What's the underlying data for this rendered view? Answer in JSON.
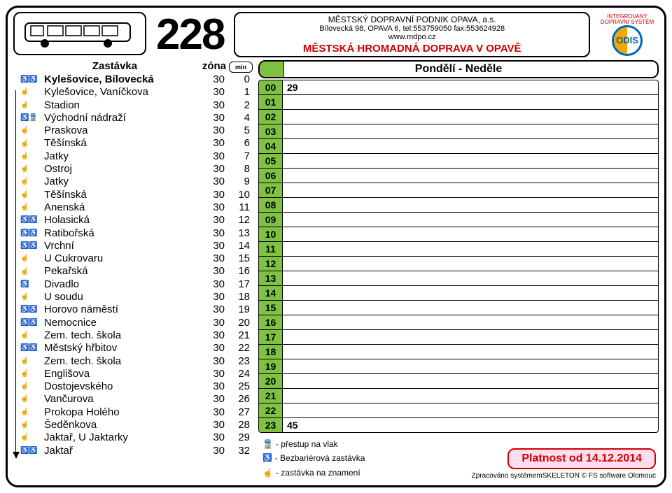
{
  "line_number": "228",
  "header": {
    "company": "MĚSTSKÝ DOPRAVNÍ PODNIK OPAVA, a.s.",
    "address": "Bílovecká 98, OPAVA 6, tel:553759050 fax:553624928",
    "web": "www.mdpo.cz",
    "title": "MĚSTSKÁ HROMADNÁ DOPRAVA V OPAVĚ"
  },
  "logo": {
    "top_text": "INTEGROVANÝ DOPRAVNÍ SYSTÉM",
    "text": "ODIS"
  },
  "stops_header": {
    "stop": "Zastávka",
    "zone": "zóna",
    "min": "min"
  },
  "stops": [
    {
      "icons": "♿♿",
      "name": "Kylešovice, Bílovecká",
      "zone": "30",
      "min": "0",
      "bold": true
    },
    {
      "icons": "☝",
      "name": "Kylešovice, Vaníčkova",
      "zone": "30",
      "min": "1"
    },
    {
      "icons": "☝",
      "name": "Stadion",
      "zone": "30",
      "min": "2"
    },
    {
      "icons": "♿🚆",
      "name": "Východní nádraží",
      "zone": "30",
      "min": "4"
    },
    {
      "icons": "☝",
      "name": "Praskova",
      "zone": "30",
      "min": "5"
    },
    {
      "icons": "☝",
      "name": "Těšínská",
      "zone": "30",
      "min": "6"
    },
    {
      "icons": "☝",
      "name": "Jatky",
      "zone": "30",
      "min": "7"
    },
    {
      "icons": "☝",
      "name": "Ostroj",
      "zone": "30",
      "min": "8"
    },
    {
      "icons": "☝",
      "name": "Jatky",
      "zone": "30",
      "min": "9"
    },
    {
      "icons": "☝",
      "name": "Těšínská",
      "zone": "30",
      "min": "10"
    },
    {
      "icons": "☝",
      "name": "Anenská",
      "zone": "30",
      "min": "11"
    },
    {
      "icons": "♿♿",
      "name": "Holasická",
      "zone": "30",
      "min": "12"
    },
    {
      "icons": "♿♿",
      "name": "Ratibořská",
      "zone": "30",
      "min": "13"
    },
    {
      "icons": "♿♿",
      "name": "Vrchní",
      "zone": "30",
      "min": "14"
    },
    {
      "icons": "☝",
      "name": "U Cukrovaru",
      "zone": "30",
      "min": "15"
    },
    {
      "icons": "☝",
      "name": "Pekařská",
      "zone": "30",
      "min": "16"
    },
    {
      "icons": "♿",
      "name": "Divadlo",
      "zone": "30",
      "min": "17"
    },
    {
      "icons": "☝",
      "name": "U soudu",
      "zone": "30",
      "min": "18"
    },
    {
      "icons": "♿♿",
      "name": "Horovo náměstí",
      "zone": "30",
      "min": "19"
    },
    {
      "icons": "♿♿",
      "name": "Nemocnice",
      "zone": "30",
      "min": "20"
    },
    {
      "icons": "☝",
      "name": "Zem. tech. škola",
      "zone": "30",
      "min": "21"
    },
    {
      "icons": "♿♿",
      "name": "Městský hřbitov",
      "zone": "30",
      "min": "22"
    },
    {
      "icons": "☝",
      "name": "Zem. tech. škola",
      "zone": "30",
      "min": "23"
    },
    {
      "icons": "☝",
      "name": "Englišova",
      "zone": "30",
      "min": "24"
    },
    {
      "icons": "☝",
      "name": "Dostojevského",
      "zone": "30",
      "min": "25"
    },
    {
      "icons": "☝",
      "name": "Vančurova",
      "zone": "30",
      "min": "26"
    },
    {
      "icons": "☝",
      "name": "Prokopa Holého",
      "zone": "30",
      "min": "27"
    },
    {
      "icons": "☝",
      "name": "Šeděnkova",
      "zone": "30",
      "min": "28"
    },
    {
      "icons": "☝",
      "name": "Jaktař, U Jaktarky",
      "zone": "30",
      "min": "29"
    },
    {
      "icons": "♿♿",
      "name": "Jaktař",
      "zone": "30",
      "min": "32"
    }
  ],
  "schedule": {
    "title": "Pondělí - Neděle",
    "hours": [
      {
        "h": "00",
        "m": "29"
      },
      {
        "h": "01",
        "m": ""
      },
      {
        "h": "02",
        "m": ""
      },
      {
        "h": "03",
        "m": ""
      },
      {
        "h": "04",
        "m": ""
      },
      {
        "h": "05",
        "m": ""
      },
      {
        "h": "06",
        "m": ""
      },
      {
        "h": "07",
        "m": ""
      },
      {
        "h": "08",
        "m": ""
      },
      {
        "h": "09",
        "m": ""
      },
      {
        "h": "10",
        "m": ""
      },
      {
        "h": "11",
        "m": ""
      },
      {
        "h": "12",
        "m": ""
      },
      {
        "h": "13",
        "m": ""
      },
      {
        "h": "14",
        "m": ""
      },
      {
        "h": "15",
        "m": ""
      },
      {
        "h": "16",
        "m": ""
      },
      {
        "h": "17",
        "m": ""
      },
      {
        "h": "18",
        "m": ""
      },
      {
        "h": "19",
        "m": ""
      },
      {
        "h": "20",
        "m": ""
      },
      {
        "h": "21",
        "m": ""
      },
      {
        "h": "22",
        "m": ""
      },
      {
        "h": "23",
        "m": "45"
      }
    ]
  },
  "legend": {
    "train": "- přestup na vlak",
    "barrier_free": "- Bezbariérová zastávka",
    "on_demand": "- zastávka na znamení"
  },
  "validity": "Platnost od 14.12.2014",
  "credit": "Zpracováno systémemSKELETON © FS software Olomouc",
  "colors": {
    "green": "#7fc241",
    "red": "#c00",
    "blue": "#0066b3",
    "orange": "#f7a600"
  }
}
